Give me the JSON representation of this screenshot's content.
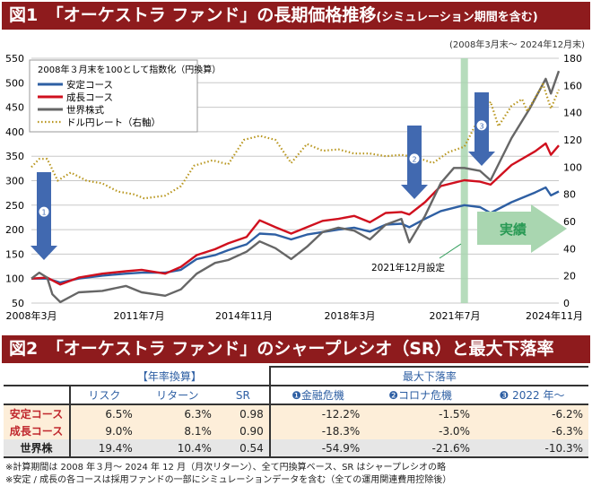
{
  "fig1": {
    "title": "図1　「オーケストラ ファンド」の長期価格推移",
    "title_suffix": "(シミュレーション期間を含む)",
    "period": "(2008年3月末～ 2024年12月末)"
  },
  "chart_data": {
    "type": "line",
    "legend_title": "2008年３月末を100として指数化（円換算）",
    "legend_position": "top-left",
    "grid": true,
    "x_ticks": [
      "2008年3月",
      "2011年7月",
      "2014年11月",
      "2018年3月",
      "2021年7月",
      "2024年11月"
    ],
    "x_range": [
      "2008-03",
      "2024-12"
    ],
    "y_left": {
      "range": [
        50,
        550
      ],
      "ticks": [
        50,
        100,
        150,
        200,
        250,
        300,
        350,
        400,
        450,
        500,
        550
      ]
    },
    "y_right": {
      "range": [
        0,
        180
      ],
      "ticks": [
        0,
        20,
        40,
        60,
        80,
        100,
        120,
        140,
        160,
        180
      ]
    },
    "series": [
      {
        "name": "安定コース",
        "axis": "left",
        "color": "#2e5fa3",
        "style": "solid",
        "points": [
          [
            "2008-03",
            100
          ],
          [
            "2008-09",
            100
          ],
          [
            "2009-02",
            92
          ],
          [
            "2009-09",
            100
          ],
          [
            "2010-06",
            106
          ],
          [
            "2011-03",
            110
          ],
          [
            "2011-09",
            112
          ],
          [
            "2012-06",
            112
          ],
          [
            "2012-12",
            118
          ],
          [
            "2013-06",
            140
          ],
          [
            "2014-01",
            148
          ],
          [
            "2014-06",
            158
          ],
          [
            "2015-01",
            170
          ],
          [
            "2015-06",
            192
          ],
          [
            "2015-12",
            190
          ],
          [
            "2016-06",
            180
          ],
          [
            "2016-12",
            190
          ],
          [
            "2017-06",
            195
          ],
          [
            "2017-12",
            200
          ],
          [
            "2018-06",
            204
          ],
          [
            "2018-12",
            196
          ],
          [
            "2019-06",
            210
          ],
          [
            "2019-12",
            212
          ],
          [
            "2020-03",
            205
          ],
          [
            "2020-09",
            222
          ],
          [
            "2021-03",
            238
          ],
          [
            "2021-12",
            250
          ],
          [
            "2022-06",
            246
          ],
          [
            "2022-10",
            234
          ],
          [
            "2023-06",
            256
          ],
          [
            "2024-03",
            276
          ],
          [
            "2024-07",
            286
          ],
          [
            "2024-09",
            270
          ],
          [
            "2024-12",
            278
          ]
        ]
      },
      {
        "name": "成長コース",
        "axis": "left",
        "color": "#d0101e",
        "style": "solid",
        "points": [
          [
            "2008-03",
            100
          ],
          [
            "2008-09",
            102
          ],
          [
            "2009-02",
            88
          ],
          [
            "2009-09",
            102
          ],
          [
            "2010-06",
            110
          ],
          [
            "2011-03",
            115
          ],
          [
            "2011-09",
            118
          ],
          [
            "2012-06",
            110
          ],
          [
            "2012-12",
            124
          ],
          [
            "2013-06",
            148
          ],
          [
            "2014-01",
            160
          ],
          [
            "2014-06",
            172
          ],
          [
            "2015-01",
            185
          ],
          [
            "2015-06",
            219
          ],
          [
            "2015-12",
            205
          ],
          [
            "2016-06",
            192
          ],
          [
            "2016-12",
            205
          ],
          [
            "2017-06",
            218
          ],
          [
            "2017-12",
            222
          ],
          [
            "2018-06",
            228
          ],
          [
            "2018-12",
            215
          ],
          [
            "2019-06",
            234
          ],
          [
            "2019-12",
            236
          ],
          [
            "2020-03",
            231
          ],
          [
            "2020-09",
            256
          ],
          [
            "2021-03",
            289
          ],
          [
            "2021-12",
            301
          ],
          [
            "2022-06",
            298
          ],
          [
            "2022-10",
            292
          ],
          [
            "2023-06",
            332
          ],
          [
            "2024-03",
            360
          ],
          [
            "2024-07",
            376
          ],
          [
            "2024-09",
            353
          ],
          [
            "2024-12",
            372
          ]
        ]
      },
      {
        "name": "世界株式",
        "axis": "left",
        "color": "#666666",
        "style": "solid",
        "points": [
          [
            "2008-03",
            100
          ],
          [
            "2008-06",
            112
          ],
          [
            "2008-09",
            102
          ],
          [
            "2008-11",
            68
          ],
          [
            "2009-02",
            52
          ],
          [
            "2009-09",
            72
          ],
          [
            "2010-06",
            75
          ],
          [
            "2011-03",
            85
          ],
          [
            "2011-09",
            72
          ],
          [
            "2012-06",
            65
          ],
          [
            "2012-12",
            78
          ],
          [
            "2013-06",
            110
          ],
          [
            "2014-01",
            132
          ],
          [
            "2014-06",
            138
          ],
          [
            "2015-01",
            155
          ],
          [
            "2015-06",
            176
          ],
          [
            "2015-12",
            162
          ],
          [
            "2016-06",
            140
          ],
          [
            "2016-12",
            165
          ],
          [
            "2017-06",
            195
          ],
          [
            "2017-12",
            204
          ],
          [
            "2018-06",
            198
          ],
          [
            "2018-12",
            180
          ],
          [
            "2019-06",
            210
          ],
          [
            "2019-12",
            222
          ],
          [
            "2020-03",
            174
          ],
          [
            "2020-09",
            228
          ],
          [
            "2021-03",
            295
          ],
          [
            "2021-08",
            326
          ],
          [
            "2021-12",
            326
          ],
          [
            "2022-06",
            320
          ],
          [
            "2022-10",
            301
          ],
          [
            "2023-06",
            387
          ],
          [
            "2024-01",
            448
          ],
          [
            "2024-07",
            508
          ],
          [
            "2024-09",
            478
          ],
          [
            "2024-12",
            524
          ]
        ]
      },
      {
        "name": "ドル円レート（右軸）",
        "axis": "right",
        "color": "#b8961e",
        "style": "dotted",
        "points": [
          [
            "2008-03",
            100
          ],
          [
            "2008-06",
            106
          ],
          [
            "2008-09",
            106
          ],
          [
            "2009-01",
            90
          ],
          [
            "2009-06",
            96
          ],
          [
            "2009-12",
            90
          ],
          [
            "2010-06",
            88
          ],
          [
            "2010-12",
            82
          ],
          [
            "2011-06",
            80
          ],
          [
            "2011-10",
            77
          ],
          [
            "2012-06",
            79
          ],
          [
            "2012-12",
            86
          ],
          [
            "2013-05",
            101
          ],
          [
            "2013-12",
            105
          ],
          [
            "2014-06",
            102
          ],
          [
            "2014-12",
            120
          ],
          [
            "2015-06",
            123
          ],
          [
            "2015-12",
            120
          ],
          [
            "2016-06",
            103
          ],
          [
            "2016-12",
            117
          ],
          [
            "2017-06",
            112
          ],
          [
            "2017-12",
            113
          ],
          [
            "2018-06",
            110
          ],
          [
            "2018-12",
            110
          ],
          [
            "2019-06",
            108
          ],
          [
            "2019-12",
            109
          ],
          [
            "2020-06",
            107
          ],
          [
            "2020-12",
            103
          ],
          [
            "2021-06",
            111
          ],
          [
            "2021-12",
            115
          ],
          [
            "2022-04",
            130
          ],
          [
            "2022-10",
            148
          ],
          [
            "2023-01",
            130
          ],
          [
            "2023-06",
            145
          ],
          [
            "2023-10",
            150
          ],
          [
            "2023-12",
            141
          ],
          [
            "2024-06",
            161
          ],
          [
            "2024-09",
            143
          ],
          [
            "2024-12",
            157
          ]
        ]
      }
    ],
    "annotations": {
      "events": [
        {
          "mark": "1",
          "date": "2008-06"
        },
        {
          "mark": "2",
          "date": "2019-12"
        },
        {
          "mark": "3",
          "date": "2022-06"
        }
      ],
      "inception_date": "2021-12",
      "inception_label": "2021年12月設定",
      "actual_label": "実績"
    }
  },
  "fig2": {
    "title": "図2　「オーケストラ ファンド」のシャープレシオ（SR）と最大下落率",
    "group_annual": "【年率換算】",
    "group_drawdown": "最大下落率",
    "columns": [
      "リスク",
      "リターン",
      "SR",
      "❶金融危機",
      "❷コロナ危機",
      "❸ 2022 年～"
    ],
    "rows": [
      {
        "label": "安定コース",
        "values": [
          "6.5%",
          "6.3%",
          "0.98",
          "-12.2%",
          "-1.5%",
          "-6.2%"
        ]
      },
      {
        "label": "成長コース",
        "values": [
          "9.0%",
          "8.1%",
          "0.90",
          "-18.3%",
          "-3.0%",
          "-6.3%"
        ]
      },
      {
        "label": "世界株",
        "values": [
          "19.4%",
          "10.4%",
          "0.54",
          "-54.9%",
          "-21.6%",
          "-10.3%"
        ]
      }
    ],
    "notes": [
      "※計算期間は 2008 年３月～ 2024 年 12 月（月次リターン）、全て円換算ベース、SR はシャープレシオの略",
      "※安定 / 成長の各コースは採用ファンドの一部にシミュレーションデータを含む（全ての運用関連費用控除後）"
    ]
  }
}
